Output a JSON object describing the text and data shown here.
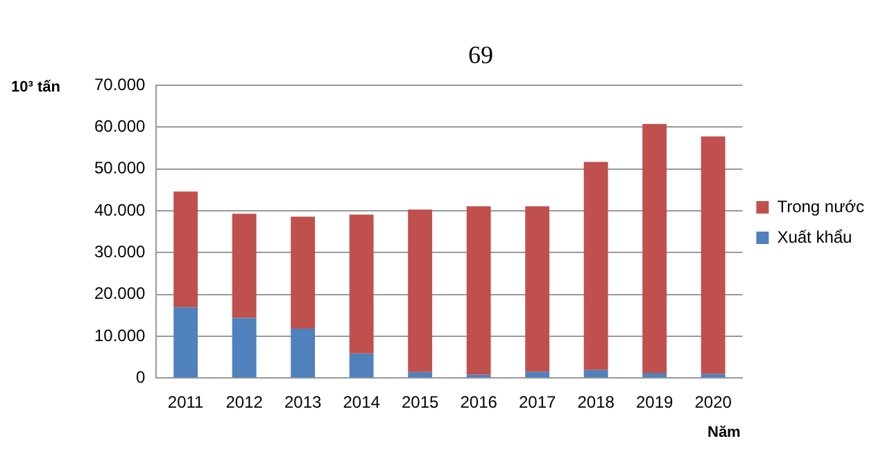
{
  "chart_data": {
    "type": "bar",
    "title": "69",
    "ylabel": "10³ tấn",
    "xlabel": "Năm",
    "categories": [
      "2011",
      "2012",
      "2013",
      "2014",
      "2015",
      "2016",
      "2017",
      "2018",
      "2019",
      "2020"
    ],
    "series": [
      {
        "name": "Xuất khẩu",
        "color": "#4f81bd",
        "values": [
          16900,
          14400,
          11800,
          5900,
          1400,
          800,
          1500,
          1900,
          1200,
          1000
        ]
      },
      {
        "name": "Trong nước",
        "color": "#c0504d",
        "values": [
          27700,
          24900,
          26800,
          33200,
          38900,
          40300,
          39600,
          49800,
          59600,
          56800
        ]
      }
    ],
    "stacked": true,
    "ylim": [
      0,
      70000
    ],
    "yticks": [
      {
        "value": 0,
        "label": "0"
      },
      {
        "value": 10000,
        "label": "10.000"
      },
      {
        "value": 20000,
        "label": "20.000"
      },
      {
        "value": 30000,
        "label": "30.000"
      },
      {
        "value": 40000,
        "label": "40.000"
      },
      {
        "value": 50000,
        "label": "50.000"
      },
      {
        "value": 60000,
        "label": "60.000"
      },
      {
        "value": 70000,
        "label": "70.000"
      }
    ],
    "grid": "y",
    "legend": "right"
  }
}
